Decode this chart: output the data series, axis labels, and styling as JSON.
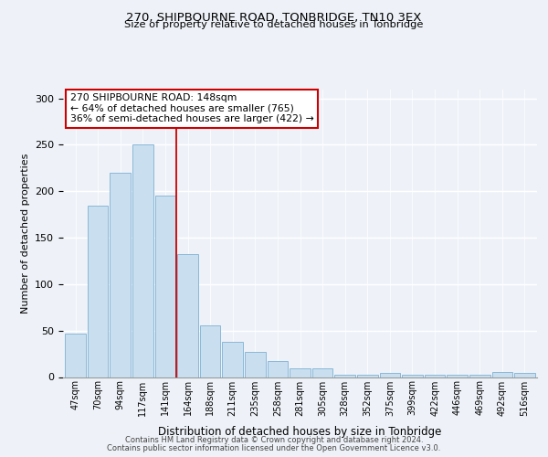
{
  "title": "270, SHIPBOURNE ROAD, TONBRIDGE, TN10 3EX",
  "subtitle": "Size of property relative to detached houses in Tonbridge",
  "xlabel": "Distribution of detached houses by size in Tonbridge",
  "ylabel": "Number of detached properties",
  "bar_labels": [
    "47sqm",
    "70sqm",
    "94sqm",
    "117sqm",
    "141sqm",
    "164sqm",
    "188sqm",
    "211sqm",
    "235sqm",
    "258sqm",
    "281sqm",
    "305sqm",
    "328sqm",
    "352sqm",
    "375sqm",
    "399sqm",
    "422sqm",
    "446sqm",
    "469sqm",
    "492sqm",
    "516sqm"
  ],
  "bar_values": [
    47,
    185,
    220,
    250,
    195,
    132,
    56,
    38,
    27,
    17,
    9,
    9,
    2,
    2,
    4,
    2,
    2,
    2,
    2,
    5,
    4
  ],
  "bar_color": "#c9dff0",
  "bar_edge_color": "#8ab8d8",
  "vline_x": 4.5,
  "vline_color": "#cc0000",
  "annotation_title": "270 SHIPBOURNE ROAD: 148sqm",
  "annotation_line1": "← 64% of detached houses are smaller (765)",
  "annotation_line2": "36% of semi-detached houses are larger (422) →",
  "annotation_box_color": "#ffffff",
  "annotation_box_edge": "#cc0000",
  "footer_line1": "Contains HM Land Registry data © Crown copyright and database right 2024.",
  "footer_line2": "Contains public sector information licensed under the Open Government Licence v3.0.",
  "ylim": [
    0,
    310
  ],
  "background_color": "#eef2f8"
}
